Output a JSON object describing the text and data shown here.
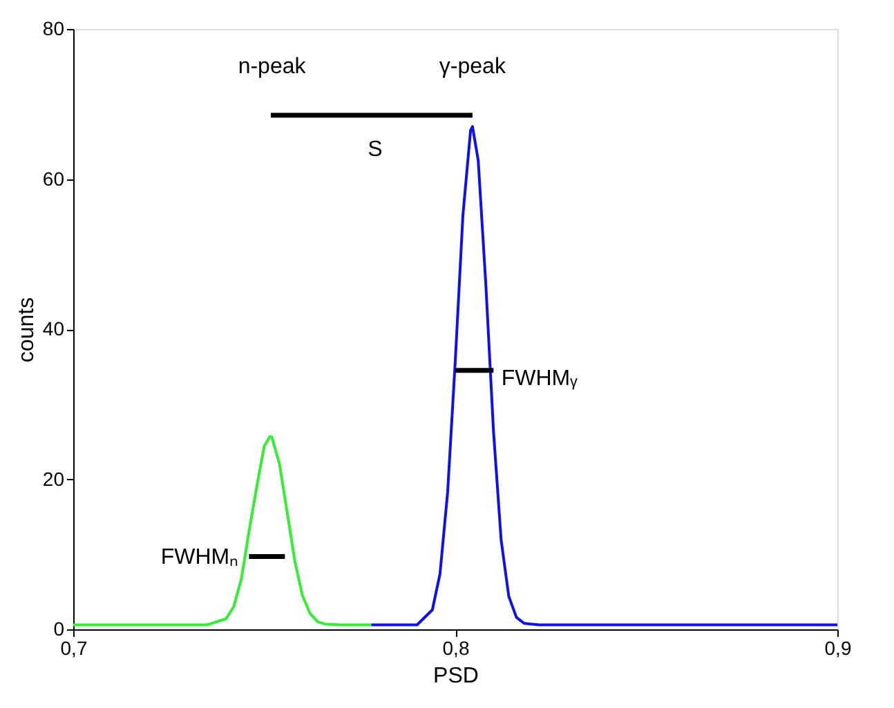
{
  "chart_data": {
    "type": "line",
    "xlabel": "PSD",
    "ylabel": "counts",
    "xlim": [
      0.7,
      0.9
    ],
    "xticks": [
      {
        "value": 0.7,
        "label": "0,7"
      },
      {
        "value": 0.8,
        "label": "0,8"
      },
      {
        "value": 0.9,
        "label": "0,9"
      }
    ],
    "ylim": [
      0,
      80
    ],
    "yticks": [
      0,
      20,
      40,
      60,
      80
    ],
    "grid": false,
    "line_style": "solid",
    "marker": "none",
    "series": [
      {
        "color": "#33ee33",
        "x": [
          0.7,
          0.735,
          0.74,
          0.742,
          0.744,
          0.746,
          0.748,
          0.75,
          0.7515,
          0.752,
          0.754,
          0.756,
          0.758,
          0.76,
          0.762,
          0.764,
          0.766,
          0.77,
          0.778
        ],
        "values": [
          0.6,
          0.6,
          1.4,
          3.0,
          6.7,
          13.0,
          18.9,
          24.4,
          25.7,
          25.6,
          22.0,
          15.6,
          9.1,
          4.5,
          2.1,
          1.0,
          0.7,
          0.6,
          0.6
        ]
      },
      {
        "color": "#1010ee",
        "x": [
          0.778,
          0.79,
          0.794,
          0.796,
          0.798,
          0.8,
          0.802,
          0.804,
          0.8045,
          0.806,
          0.808,
          0.81,
          0.812,
          0.814,
          0.816,
          0.818,
          0.822,
          0.9
        ],
        "values": [
          0.6,
          0.6,
          2.6,
          7.4,
          18.3,
          35.8,
          55.2,
          66.5,
          67.0,
          62.5,
          45.9,
          26.4,
          11.9,
          4.4,
          1.6,
          0.8,
          0.6,
          0.6
        ]
      },
      {
        "color": "#000000",
        "x": [
          0.7517,
          0.8045
        ],
        "values": [
          68.5,
          68.5
        ]
      },
      {
        "color": "#000000",
        "x": [
          0.746,
          0.7554
        ],
        "values": [
          9.7,
          9.7
        ]
      },
      {
        "color": "#000000",
        "x": [
          0.8,
          0.81
        ],
        "values": [
          34.5,
          34.5
        ]
      }
    ],
    "annotations": [
      "n-peak",
      "γ-peak",
      "S",
      "FWHMₙ",
      "FWHMᵧ"
    ]
  }
}
